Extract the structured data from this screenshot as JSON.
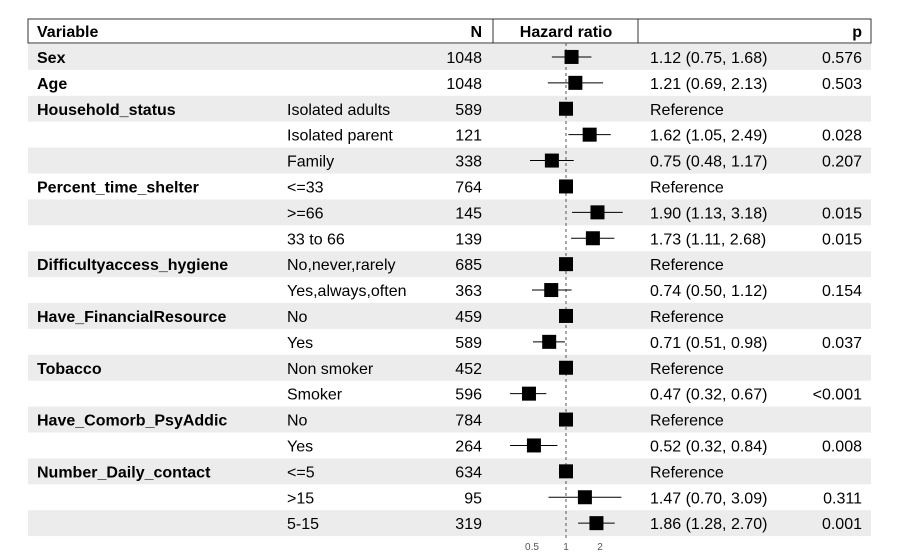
{
  "header": {
    "variable": "Variable",
    "n": "N",
    "hazard_ratio": "Hazard ratio",
    "p": "p"
  },
  "rows": [
    {
      "variable": "Sex",
      "level": "",
      "n": "1048",
      "estimate": "1.12 (0.75, 1.68)",
      "p": "0.576"
    },
    {
      "variable": "Age",
      "level": "",
      "n": "1048",
      "estimate": "1.21 (0.69, 2.13)",
      "p": "0.503"
    },
    {
      "variable": "Household_status",
      "level": "Isolated adults",
      "n": "589",
      "estimate": "Reference",
      "p": ""
    },
    {
      "variable": "",
      "level": "Isolated parent",
      "n": "121",
      "estimate": "1.62 (1.05, 2.49)",
      "p": "0.028"
    },
    {
      "variable": "",
      "level": "Family",
      "n": "338",
      "estimate": "0.75 (0.48, 1.17)",
      "p": "0.207"
    },
    {
      "variable": "Percent_time_shelter",
      "level": "<=33",
      "n": "764",
      "estimate": "Reference",
      "p": ""
    },
    {
      "variable": "",
      "level": ">=66",
      "n": "145",
      "estimate": "1.90 (1.13, 3.18)",
      "p": "0.015"
    },
    {
      "variable": "",
      "level": "33 to 66",
      "n": "139",
      "estimate": "1.73 (1.11, 2.68)",
      "p": "0.015"
    },
    {
      "variable": "Difficultyaccess_hygiene",
      "level": "No,never,rarely",
      "n": "685",
      "estimate": "Reference",
      "p": ""
    },
    {
      "variable": "",
      "level": "Yes,always,often",
      "n": "363",
      "estimate": "0.74 (0.50, 1.12)",
      "p": "0.154"
    },
    {
      "variable": "Have_FinancialResource",
      "level": "No",
      "n": "459",
      "estimate": "Reference",
      "p": ""
    },
    {
      "variable": "",
      "level": "Yes",
      "n": "589",
      "estimate": "0.71 (0.51, 0.98)",
      "p": "0.037"
    },
    {
      "variable": "Tobacco",
      "level": "Non smoker",
      "n": "452",
      "estimate": "Reference",
      "p": ""
    },
    {
      "variable": "",
      "level": "Smoker",
      "n": "596",
      "estimate": "0.47 (0.32, 0.67)",
      "p": "<0.001"
    },
    {
      "variable": "Have_Comorb_PsyAddic",
      "level": "No",
      "n": "784",
      "estimate": "Reference",
      "p": ""
    },
    {
      "variable": "",
      "level": "Yes",
      "n": "264",
      "estimate": "0.52 (0.32, 0.84)",
      "p": "0.008"
    },
    {
      "variable": "Number_Daily_contact",
      "level": "<=5",
      "n": "634",
      "estimate": "Reference",
      "p": ""
    },
    {
      "variable": "",
      "level": ">15",
      "n": "95",
      "estimate": "1.47 (0.70, 3.09)",
      "p": "0.311"
    },
    {
      "variable": "",
      "level": "5-15",
      "n": "319",
      "estimate": "1.86 (1.28, 2.70)",
      "p": "0.001"
    }
  ],
  "chart_data": {
    "type": "forest",
    "scale": "log",
    "reference_line": 1,
    "x_ticks": [
      "0.5",
      "1",
      "2"
    ],
    "points": [
      {
        "hr": 1.12,
        "lo": 0.75,
        "hi": 1.68
      },
      {
        "hr": 1.21,
        "lo": 0.69,
        "hi": 2.13
      },
      {
        "hr": 1.0,
        "lo": null,
        "hi": null
      },
      {
        "hr": 1.62,
        "lo": 1.05,
        "hi": 2.49
      },
      {
        "hr": 0.75,
        "lo": 0.48,
        "hi": 1.17
      },
      {
        "hr": 1.0,
        "lo": null,
        "hi": null
      },
      {
        "hr": 1.9,
        "lo": 1.13,
        "hi": 3.18
      },
      {
        "hr": 1.73,
        "lo": 1.11,
        "hi": 2.68
      },
      {
        "hr": 1.0,
        "lo": null,
        "hi": null
      },
      {
        "hr": 0.74,
        "lo": 0.5,
        "hi": 1.12
      },
      {
        "hr": 1.0,
        "lo": null,
        "hi": null
      },
      {
        "hr": 0.71,
        "lo": 0.51,
        "hi": 0.98
      },
      {
        "hr": 1.0,
        "lo": null,
        "hi": null
      },
      {
        "hr": 0.47,
        "lo": 0.32,
        "hi": 0.67
      },
      {
        "hr": 1.0,
        "lo": null,
        "hi": null
      },
      {
        "hr": 0.52,
        "lo": 0.32,
        "hi": 0.84
      },
      {
        "hr": 1.0,
        "lo": null,
        "hi": null
      },
      {
        "hr": 1.47,
        "lo": 0.7,
        "hi": 3.09
      },
      {
        "hr": 1.86,
        "lo": 1.28,
        "hi": 2.7
      }
    ],
    "colors": {
      "stripe": "#ececec",
      "marker": "#000000",
      "refline": "#555555",
      "tick_text": "#555555"
    }
  }
}
